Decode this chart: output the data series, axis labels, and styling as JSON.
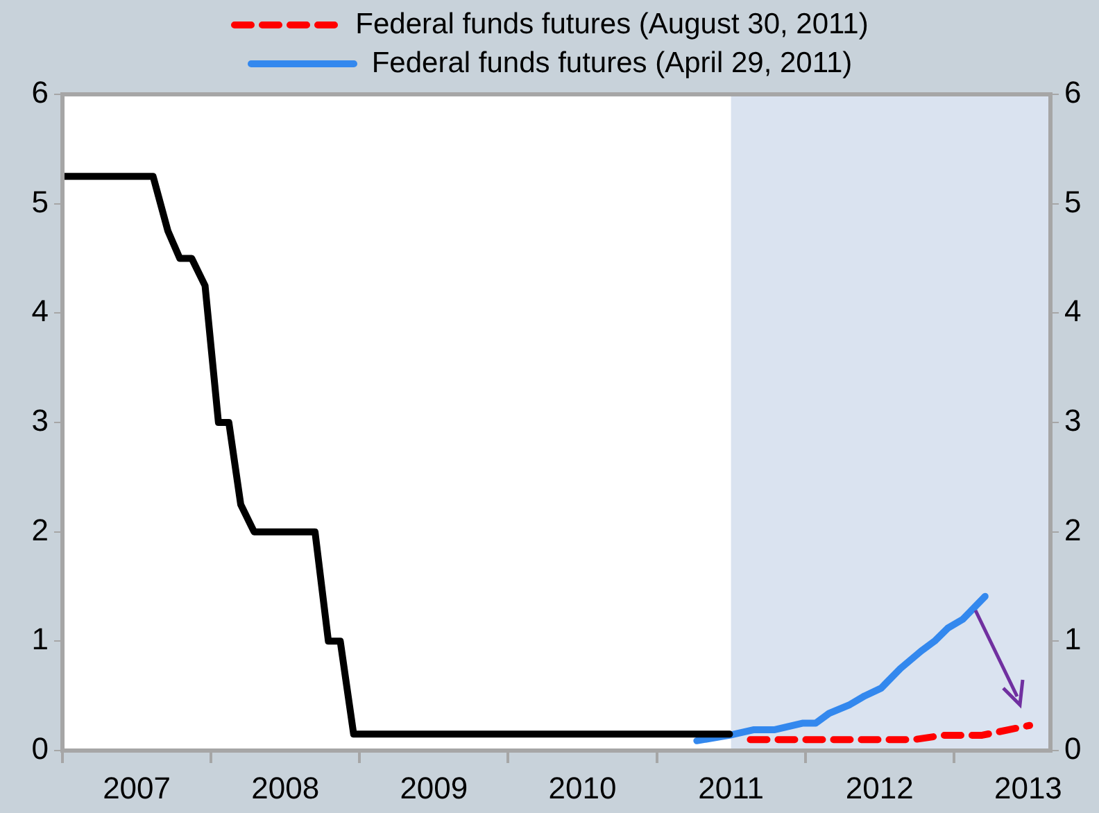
{
  "chart_data": {
    "type": "line",
    "legend": "top",
    "marker": "none",
    "xlim": [
      2007,
      2013.65
    ],
    "xticks": [
      {
        "value": 2007,
        "label": null
      },
      {
        "value": 2007.5,
        "label": "2007"
      },
      {
        "value": 2008,
        "label": null
      },
      {
        "value": 2008.5,
        "label": "2008"
      },
      {
        "value": 2009,
        "label": null
      },
      {
        "value": 2009.5,
        "label": "2009"
      },
      {
        "value": 2010,
        "label": null
      },
      {
        "value": 2010.5,
        "label": "2010"
      },
      {
        "value": 2011,
        "label": null
      },
      {
        "value": 2011.5,
        "label": "2011"
      },
      {
        "value": 2012,
        "label": null
      },
      {
        "value": 2012.5,
        "label": "2012"
      },
      {
        "value": 2013,
        "label": null
      },
      {
        "value": 2013.5,
        "label": "2013"
      }
    ],
    "ylim": [
      0,
      6
    ],
    "yticks": [
      0,
      1,
      2,
      3,
      4,
      5,
      6
    ],
    "y2lim": [
      0,
      6
    ],
    "y2ticks": [
      0,
      1,
      2,
      3,
      4,
      5,
      6
    ],
    "bands": [
      {
        "axis": "x",
        "from": 2011.5,
        "to": 2013.65,
        "color": "#dae3f0"
      }
    ],
    "series": [
      {
        "color": "#000000",
        "line_style": "solid",
        "x": [
          2007,
          2007.61,
          2007.71,
          2007.79,
          2007.87,
          2007.96,
          2008.05,
          2008.12,
          2008.2,
          2008.29,
          2008.7,
          2008.79,
          2008.87,
          2008.96,
          2011.49
        ],
        "values": [
          5.25,
          5.25,
          4.75,
          4.5,
          4.5,
          4.25,
          3,
          3,
          2.25,
          2,
          2,
          1,
          1,
          0.15,
          0.15
        ]
      },
      {
        "name": "Federal funds futures (August 30, 2011)",
        "color": "#ff0000",
        "line_style": "dashed",
        "x": [
          2011.63,
          2012.73,
          2012.93,
          2013.19,
          2013.51
        ],
        "values": [
          0.1,
          0.1,
          0.14,
          0.14,
          0.23
        ]
      },
      {
        "name": "Federal funds futures (April 29, 2011)",
        "color": "#3388ee",
        "line_style": "solid",
        "x": [
          2011.27,
          2011.49,
          2011.65,
          2011.79,
          2011.98,
          2012.07,
          2012.16,
          2012.3,
          2012.4,
          2012.51,
          2012.64,
          2012.78,
          2012.87,
          2012.96,
          2013.06,
          2013.21
        ],
        "values": [
          0.09,
          0.14,
          0.19,
          0.19,
          0.25,
          0.25,
          0.34,
          0.42,
          0.5,
          0.57,
          0.75,
          0.91,
          1.0,
          1.12,
          1.2,
          1.41
        ]
      }
    ]
  }
}
